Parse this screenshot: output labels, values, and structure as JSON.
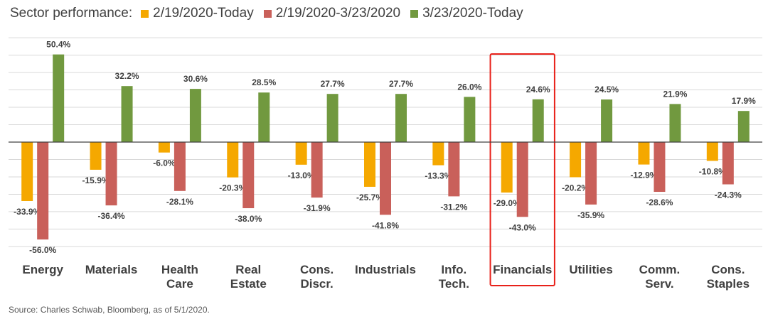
{
  "chart_data": {
    "type": "bar",
    "title": "Sector performance:",
    "categories": [
      [
        "Energy"
      ],
      [
        "Materials"
      ],
      [
        "Health",
        "Care"
      ],
      [
        "Real",
        "Estate"
      ],
      [
        "Cons.",
        "Discr."
      ],
      [
        "Industrials"
      ],
      [
        "Info.",
        "Tech."
      ],
      [
        "Financials"
      ],
      [
        "Utilities"
      ],
      [
        "Comm.",
        "Serv."
      ],
      [
        "Cons.",
        "Staples"
      ]
    ],
    "series": [
      {
        "name": "2/19/2020-Today",
        "color": "#F5A800",
        "values": [
          -33.9,
          -15.9,
          -6.0,
          -20.3,
          -13.0,
          -25.7,
          -13.3,
          -29.0,
          -20.2,
          -12.9,
          -10.8
        ]
      },
      {
        "name": "2/19/2020-3/23/2020",
        "color": "#C9605A",
        "values": [
          -56.0,
          -36.4,
          -28.1,
          -38.0,
          -31.9,
          -41.8,
          -31.2,
          -43.0,
          -35.9,
          -28.6,
          -24.3
        ]
      },
      {
        "name": "3/23/2020-Today",
        "color": "#71993F",
        "values": [
          50.4,
          32.2,
          30.6,
          28.5,
          27.7,
          27.7,
          26.0,
          24.6,
          24.5,
          21.9,
          17.9
        ]
      }
    ],
    "ylim": [
      -65,
      65
    ],
    "value_suffix": "%",
    "grid": true,
    "legend": "top",
    "highlight_category": "Financials",
    "highlight_color": "#E8211A"
  },
  "source": "Source: Charles Schwab, Bloomberg, as of 5/1/2020."
}
